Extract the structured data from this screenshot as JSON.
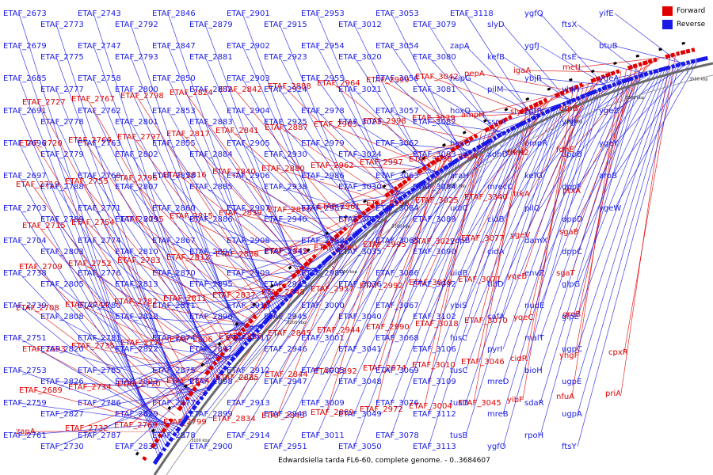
{
  "caption": "Edwardsiella tarda FL6-60, complete genome. - 0..3684607",
  "legend": [
    {
      "label": "Forward",
      "color": "#e00000"
    },
    {
      "label": "Reverse",
      "color": "#1a1ae6"
    }
  ],
  "colors": {
    "forward": "#e00000",
    "reverse": "#1a1ae6",
    "backbone": "#666666"
  },
  "ticks": [
    "3100 kbp",
    "3150 kbp",
    "3200 kbp",
    "3250 kbp",
    "3300 kbp",
    "3350 kbp",
    "3400 kbp",
    "3450 kbp",
    "3500 kbp",
    "3550 kbp"
  ],
  "forward_labels": [
    "zapA",
    "ETAF_2689",
    "ETAF_2693",
    "ETAF_2708",
    "ETAF_2709",
    "ETAF_2715",
    "ETAF_2719",
    "ETAF_2720",
    "ETAF_2727",
    "ETAF_2732",
    "ETAF_2734",
    "ETAF_2735",
    "ETAF_2744",
    "ETAF_2752",
    "ETAF_2754",
    "ETAF_2755",
    "ETAF_2766",
    "ETAF_2767",
    "ETAF_2769",
    "ETAF_2770",
    "ETAF_2772",
    "ETAF_2782",
    "ETAF_2783",
    "ETAF_2795",
    "ETAF_2796",
    "ETAF_2797",
    "ETAF_2798",
    "ETAF_2799",
    "ETAF_2804",
    "ETAF_2806",
    "ETAF_2811",
    "ETAF_2812",
    "ETAF_2815",
    "ETAF_2816",
    "ETAF_2817",
    "ETAF_2824",
    "ETAF_2834",
    "ETAF_2835",
    "ETAF_2836",
    "ETAF_2837",
    "ETAF_2838",
    "ETAF_2839",
    "ETAF_2840",
    "ETAF_2841",
    "ETAF_2842",
    "ETAF_2843",
    "ETAF_2844",
    "ETAF_2845",
    "ETAF_2848",
    "ETAF_2849",
    "ETAF_2876",
    "ETAF_2880",
    "ETAF_2887",
    "ETAF_2888",
    "ETAF_2889",
    "ETAF_2892",
    "ETAF_2944",
    "ETAF_2957",
    "ETAF_2960",
    "ETAF_2961",
    "ETAF_2962",
    "ETAF_2963",
    "ETAF_2964",
    "ETAF_2972",
    "ETAF_2974",
    "ETAF_2990",
    "ETAF_2992",
    "ETAF_2995",
    "ETAF_2996",
    "ETAF_2997",
    "ETAF_2998",
    "ETAF_2999",
    "ETAF_3004",
    "ETAF_3010",
    "ETAF_3018",
    "ETAF_3019",
    "ETAF_3022",
    "ETAF_3025",
    "ETAF_3338",
    "ETAF_3039",
    "ETAF_3042",
    "ETAF_3045",
    "ETAF_3046",
    "ETAF_3070",
    "ETAF_3071",
    "ETAF_3077",
    "ETAF_3340",
    "pspA",
    "ampH",
    "pepA",
    "yibF",
    "cidR",
    "yqeC",
    "yqeB",
    "ygeV",
    "trkA",
    "trkH2",
    "slyX",
    "igaA",
    "nfuA",
    "yhgF",
    "greB",
    "sgaT",
    "sgaB",
    "ptxA",
    "fdhE",
    "dtpB",
    "metJ",
    "priA",
    "cpxR"
  ],
  "reverse_labels": [
    "ETAF_2673",
    "ETAF_2679",
    "ETAF_2685",
    "ETAF_2691",
    "ETAF_2696",
    "ETAF_2697",
    "ETAF_2703",
    "ETAF_2704",
    "ETAF_2738",
    "ETAF_2739",
    "ETAF_2751",
    "ETAF_2753",
    "ETAF_2759",
    "ETAF_2761",
    "ETAF_2773",
    "ETAF_2775",
    "ETAF_2777",
    "ETAF_2778",
    "ETAF_2779",
    "ETAF_2788",
    "ETAF_2789",
    "ETAF_2803",
    "ETAF_2805",
    "ETAF_2808",
    "ETAF_2820",
    "ETAF_2826",
    "ETAF_2827",
    "ETAF_2730",
    "ETAF_2743",
    "ETAF_2747",
    "ETAF_2758",
    "ETAF_2762",
    "ETAF_2763",
    "ETAF_2768",
    "ETAF_2771",
    "ETAF_2774",
    "ETAF_2776",
    "ETAF_2780",
    "ETAF_2781",
    "ETAF_2785",
    "ETAF_2786",
    "ETAF_2787",
    "ETAF_2792",
    "ETAF_2793",
    "ETAF_2800",
    "ETAF_2801",
    "ETAF_2802",
    "ETAF_2807",
    "ETAF_2809",
    "ETAF_2810",
    "ETAF_2813",
    "ETAF_2818",
    "ETAF_2822",
    "ETAF_2823",
    "ETAF_2829",
    "ETAF_2833",
    "ETAF_2846",
    "ETAF_2847",
    "ETAF_2850",
    "ETAF_2853",
    "ETAF_2855",
    "ETAF_2858",
    "ETAF_2860",
    "ETAF_2867",
    "ETAF_2870",
    "ETAF_2871",
    "ETAF_2874",
    "ETAF_2875",
    "ETAF_2877",
    "ETAF_2878",
    "ETAF_2879",
    "ETAF_2881",
    "ETAF_2882",
    "ETAF_2883",
    "ETAF_2884",
    "ETAF_2885",
    "ETAF_2886",
    "ETAF_2894",
    "ETAF_2895",
    "ETAF_2896",
    "ETAF_2897",
    "ETAF_2898",
    "ETAF_2899",
    "ETAF_2900",
    "ETAF_2901",
    "ETAF_2902",
    "ETAF_2903",
    "ETAF_2904",
    "ETAF_2905",
    "ETAF_2906",
    "ETAF_2907",
    "ETAF_2908",
    "ETAF_2909",
    "ETAF_2910",
    "ETAF_2911",
    "ETAF_2912",
    "ETAF_2913",
    "ETAF_2914",
    "ETAF_2915",
    "ETAF_2923",
    "ETAF_2924",
    "ETAF_2925",
    "ETAF_2930",
    "ETAF_2938",
    "ETAF_2940",
    "ETAF_2942",
    "ETAF_2943",
    "ETAF_2945",
    "ETAF_2946",
    "ETAF_2947",
    "ETAF_2948",
    "ETAF_2951",
    "ETAF_2953",
    "ETAF_2954",
    "ETAF_2955",
    "ETAF_2978",
    "ETAF_2979",
    "ETAF_2986",
    "ETAF_2987",
    "ETAF_2988",
    "ETAF_2989",
    "ETAF_3000",
    "ETAF_3001",
    "ETAF_3005",
    "ETAF_3009",
    "ETAF_3011",
    "ETAF_3012",
    "ETAF_3020",
    "ETAF_3021",
    "ETAF_3023",
    "ETAF_3024",
    "ETAF_3030",
    "ETAF_3032",
    "ETAF_3035",
    "ETAF_3036",
    "ETAF_3040",
    "ETAF_3041",
    "ETAF_3048",
    "ETAF_3049",
    "ETAF_3050",
    "ETAF_3053",
    "ETAF_3054",
    "ETAF_3056",
    "ETAF_3057",
    "ETAF_3062",
    "ETAF_3063",
    "ETAF_3064",
    "ETAF_3065",
    "ETAF_3066",
    "ETAF_3067",
    "ETAF_3068",
    "ETAF_3069",
    "ETAF_3076",
    "ETAF_3078",
    "ETAF_3079",
    "ETAF_3080",
    "ETAF_3081",
    "ETAF_3082",
    "ETAF_3083",
    "ETAF_3084",
    "ETAF_3089",
    "ETAF_3090",
    "ETAF_3092",
    "ETAF_3102",
    "ETAF_3106",
    "ETAF_3109",
    "ETAF_3112",
    "ETAF_3113",
    "ETAF_3118",
    "zapA",
    "nupG",
    "hoxQ",
    "hoxO",
    "araH",
    "udiC",
    "ydpB",
    "uidB",
    "ybiS",
    "fusC",
    "tusC",
    "tusD",
    "tusB",
    "slyD",
    "kefB",
    "pilM",
    "ssnA",
    "xdhD",
    "mrecC",
    "cidB",
    "cidA",
    "tldD",
    "cafA",
    "pyrI",
    "mreD",
    "mreB",
    "ygfO",
    "ygfQ",
    "ygfJ",
    "ybjR",
    "zntR",
    "ompR",
    "kefG",
    "pilQ",
    "damX",
    "envZ",
    "nudE",
    "malT",
    "bioH",
    "sdaR",
    "rpoH",
    "ftsX",
    "ftsE",
    "yhjH",
    "yhjJ",
    "dppB",
    "dppF",
    "dppD",
    "dppC",
    "glpG",
    "glpE",
    "ugpC",
    "ugpE",
    "ugpA",
    "ftsY",
    "yifE",
    "btuB",
    "ygeA",
    "ygeZ",
    "ygeY",
    "aroB",
    "ygeW"
  ],
  "forward_label_layout_count": 0
}
